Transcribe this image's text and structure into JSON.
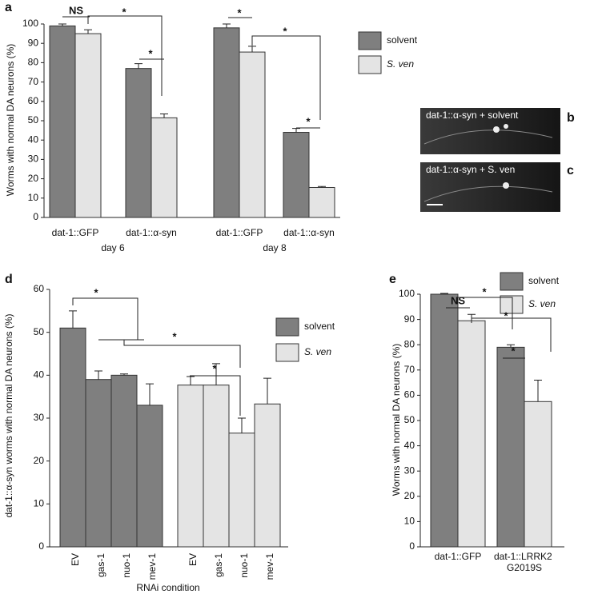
{
  "chart_data": [
    {
      "type": "bar",
      "panel": "a",
      "ylabel": "Worms with normal DA neurons (%)",
      "categories": [
        "dat-1::GFP",
        "dat-1::α-syn",
        "dat-1::GFP",
        "dat-1::α-syn"
      ],
      "groups": [
        "day 6",
        "day 8"
      ],
      "series": [
        {
          "name": "solvent",
          "color": "#7f7f7f",
          "values": [
            99,
            77,
            98,
            44
          ],
          "errors": [
            1,
            2.5,
            2,
            2
          ]
        },
        {
          "name": "S. ven",
          "color": "#e4e4e4",
          "values": [
            95,
            51.5,
            85.5,
            15.5
          ],
          "errors": [
            2,
            2,
            3,
            0.5
          ]
        }
      ],
      "ylim": [
        0,
        100
      ],
      "yticks": [
        0,
        10,
        20,
        30,
        40,
        50,
        60,
        70,
        80,
        90,
        100
      ],
      "annotations": [
        "NS",
        "*",
        "*",
        "*",
        "*",
        "*"
      ]
    },
    {
      "type": "bar",
      "panel": "d",
      "ylabel": "dat-1::α-syn worms with normal DA neurons (%)",
      "xlabel": "RNAi condition",
      "categories": [
        "EV",
        "gas-1",
        "nuo-1",
        "mev-1"
      ],
      "series": [
        {
          "name": "solvent",
          "color": "#7f7f7f",
          "values": [
            51,
            39,
            40,
            33
          ],
          "errors": [
            4,
            2,
            0.3,
            5
          ]
        },
        {
          "name": "S. ven",
          "color": "#e4e4e4",
          "values": [
            37.7,
            37.7,
            26.5,
            33.3
          ],
          "errors": [
            2,
            5,
            3.5,
            6
          ]
        }
      ],
      "ylim": [
        0,
        60
      ],
      "yticks": [
        0,
        10,
        20,
        30,
        40,
        50,
        60
      ],
      "annotations": [
        "*",
        "*",
        "*"
      ]
    },
    {
      "type": "bar",
      "panel": "e",
      "ylabel": "Worms with normal DA neurons (%)",
      "categories": [
        "dat-1::GFP",
        "dat-1::LRRK2 G2019S"
      ],
      "series": [
        {
          "name": "solvent",
          "color": "#7f7f7f",
          "values": [
            100,
            79
          ],
          "errors": [
            0.3,
            1
          ]
        },
        {
          "name": "S. ven",
          "color": "#e4e4e4",
          "values": [
            89.5,
            57.5
          ],
          "errors": [
            2.5,
            8.5
          ]
        }
      ],
      "ylim": [
        0,
        100
      ],
      "yticks": [
        0,
        10,
        20,
        30,
        40,
        50,
        60,
        70,
        80,
        90,
        100
      ],
      "annotations": [
        "NS",
        "*",
        "*",
        "*"
      ]
    }
  ],
  "images": [
    {
      "panel": "b",
      "caption": "dat-1::α-syn + solvent"
    },
    {
      "panel": "c",
      "caption": "dat-1::α-syn + S. ven"
    }
  ]
}
